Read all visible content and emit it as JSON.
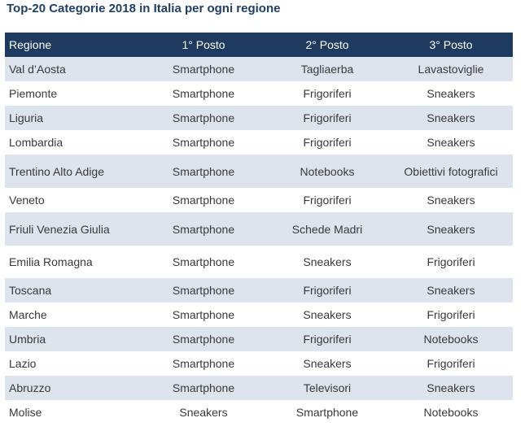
{
  "title": "Top-20 Categorie 2018 in Italia per ogni regione",
  "table": {
    "headers": [
      "Regione",
      "1° Posto",
      "2° Posto",
      "3° Posto"
    ],
    "rows": [
      [
        "Val d’Aosta",
        "Smartphone",
        "Tagliaerba",
        "Lavastoviglie"
      ],
      [
        "Piemonte",
        "Smartphone",
        "Frigoriferi",
        "Sneakers"
      ],
      [
        "Liguria",
        "Smartphone",
        "Frigoriferi",
        "Sneakers"
      ],
      [
        "Lombardia",
        "Smartphone",
        "Frigoriferi",
        "Sneakers"
      ],
      [
        "Trentino Alto Adige",
        "Smartphone",
        "Notebooks",
        "Obiettivi fotografici"
      ],
      [
        "Veneto",
        "Smartphone",
        "Frigoriferi",
        "Sneakers"
      ],
      [
        "Friuli Venezia Giulia",
        "Smartphone",
        "Schede Madri",
        "Sneakers"
      ],
      [
        "Emilia Romagna",
        "Smartphone",
        "Sneakers",
        "Frigoriferi"
      ],
      [
        "Toscana",
        "Smartphone",
        "Frigoriferi",
        "Sneakers"
      ],
      [
        "Marche",
        "Smartphone",
        "Sneakers",
        "Frigoriferi"
      ],
      [
        "Umbria",
        "Smartphone",
        "Frigoriferi",
        "Notebooks"
      ],
      [
        "Lazio",
        "Smartphone",
        "Sneakers",
        "Frigoriferi"
      ],
      [
        "Abruzzo",
        "Smartphone",
        "Televisori",
        "Sneakers"
      ],
      [
        "Molise",
        "Sneakers",
        "Smartphone",
        "Notebooks"
      ]
    ]
  },
  "colors": {
    "header_bg": "#1e3a5f",
    "title": "#1f3f66",
    "row_shaded": "#dde4ee",
    "row_plain": "#ffffff"
  }
}
